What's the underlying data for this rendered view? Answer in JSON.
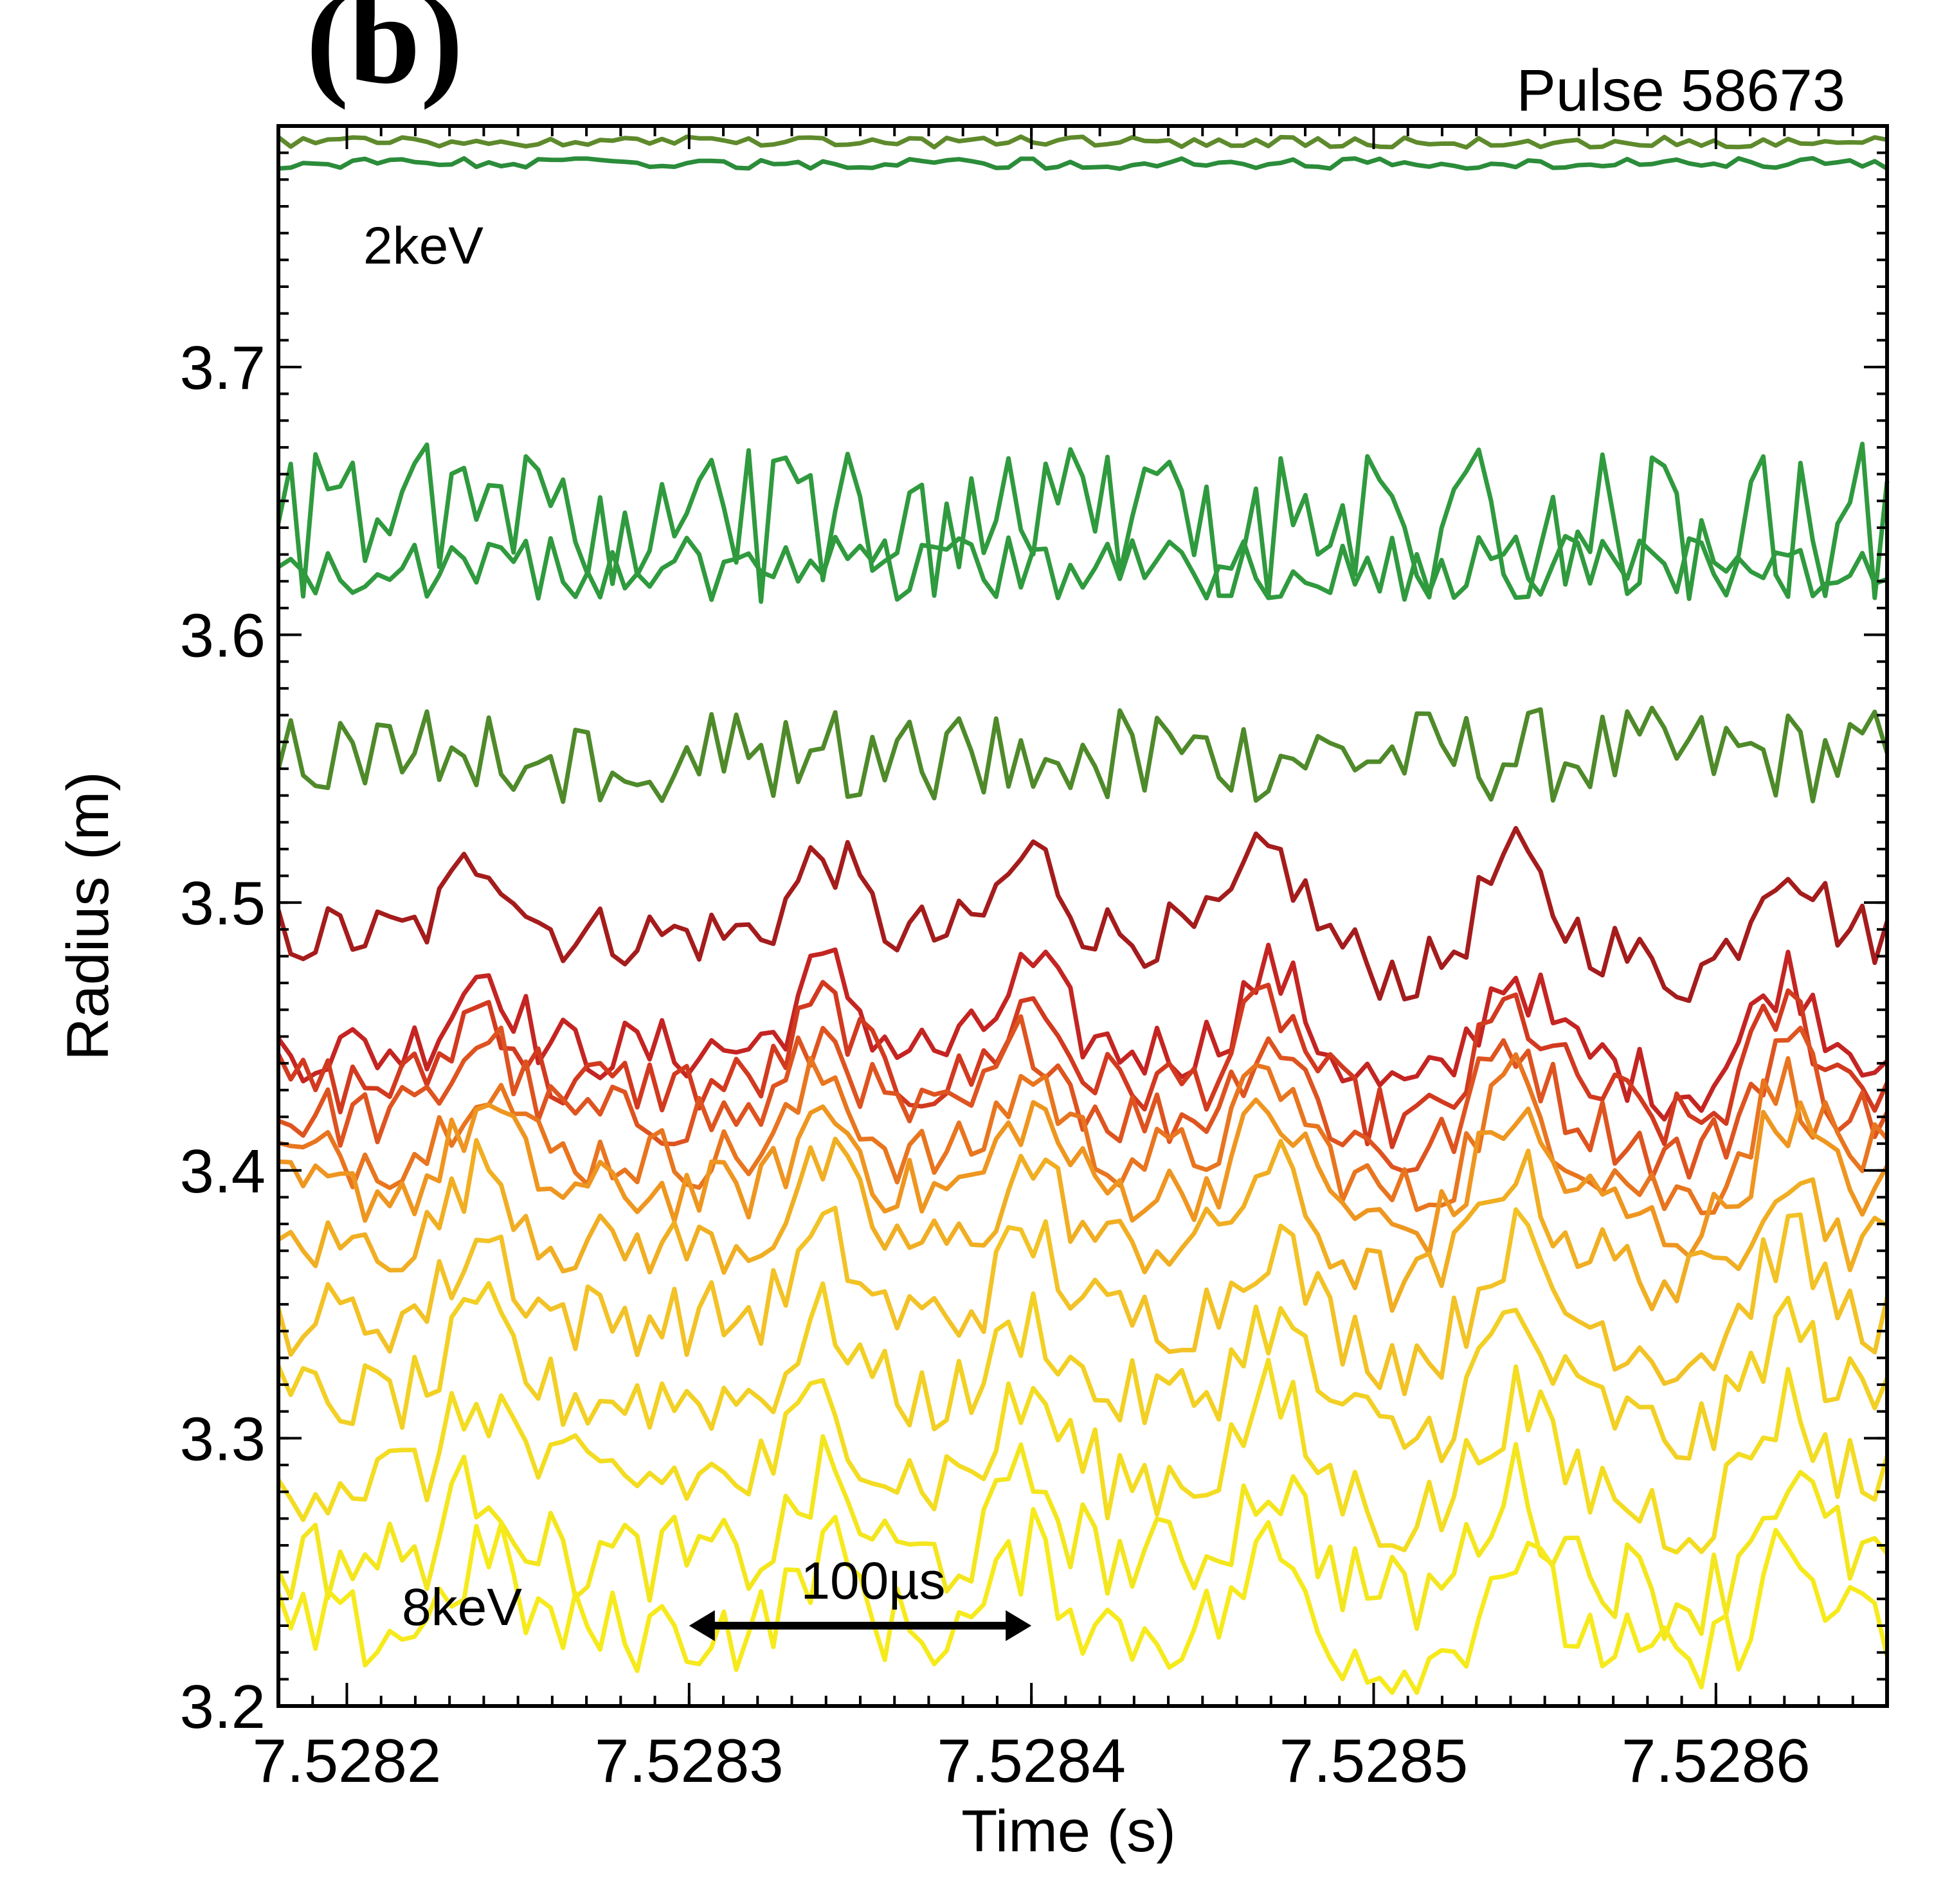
{
  "panel_label": "(b)",
  "pulse_label": "Pulse 58673",
  "annotations": {
    "low_level": "2keV",
    "high_level": "8keV",
    "scale_bar": "100µs"
  },
  "chart_data": {
    "type": "contour",
    "title": "",
    "xlabel": "Time (s)",
    "ylabel": "Radius (m)",
    "xlim": [
      7.52818,
      7.52865
    ],
    "ylim": [
      3.2,
      3.79
    ],
    "xticks": [
      7.5282,
      7.5283,
      7.5284,
      7.5285,
      7.5286
    ],
    "xtick_labels": [
      "7.5282",
      "7.5283",
      "7.5284",
      "7.5285",
      "7.5286"
    ],
    "yticks": [
      3.2,
      3.3,
      3.4,
      3.5,
      3.6,
      3.7
    ],
    "ytick_labels": [
      "3.2",
      "3.3",
      "3.4",
      "3.5",
      "3.6",
      "3.7"
    ],
    "scale_bar": {
      "t_start": 7.5283,
      "t_end": 7.5284,
      "radius": 3.23
    },
    "contour_levels": [
      {
        "name": "level-edge-top",
        "color": "#5e8a2c",
        "base": 3.784,
        "amp": 0.002
      },
      {
        "name": "level-edge-second",
        "color": "#2b8c3a",
        "base": 3.776,
        "amp": 0.002
      },
      {
        "name": "level-green-fluct",
        "color": "#2f9a3e",
        "base": 3.642,
        "amp": 0.03
      },
      {
        "name": "level-green-lower",
        "color": "#2f9a3e",
        "base": 3.625,
        "amp": 0.012
      },
      {
        "name": "level-olive",
        "color": "#4f8a2a",
        "base": 3.555,
        "amp": 0.018
      },
      {
        "name": "level-dark-red",
        "color": "#a51c1c",
        "base": 3.488,
        "amp": 0.012
      },
      {
        "name": "level-red",
        "color": "#c42522",
        "base": 3.445,
        "amp": 0.012
      },
      {
        "name": "level-red-orange",
        "color": "#d23a1f",
        "base": 3.432,
        "amp": 0.012
      },
      {
        "name": "level-orange-red",
        "color": "#de5420",
        "base": 3.42,
        "amp": 0.012
      },
      {
        "name": "level-orange",
        "color": "#e8751f",
        "base": 3.405,
        "amp": 0.012
      },
      {
        "name": "level-dark-orange",
        "color": "#ee9620",
        "base": 3.392,
        "amp": 0.012
      },
      {
        "name": "level-amber",
        "color": "#f0ae22",
        "base": 3.372,
        "amp": 0.012
      },
      {
        "name": "level-gold",
        "color": "#f2c226",
        "base": 3.345,
        "amp": 0.014
      },
      {
        "name": "level-gold-light",
        "color": "#f2d024",
        "base": 3.315,
        "amp": 0.014
      },
      {
        "name": "level-yellow",
        "color": "#f3dc22",
        "base": 3.285,
        "amp": 0.016
      },
      {
        "name": "level-yellow-bright",
        "color": "#f4e61e",
        "base": 3.255,
        "amp": 0.016
      },
      {
        "name": "level-yellow-low",
        "color": "#f6ea1c",
        "base": 3.228,
        "amp": 0.016
      }
    ]
  }
}
